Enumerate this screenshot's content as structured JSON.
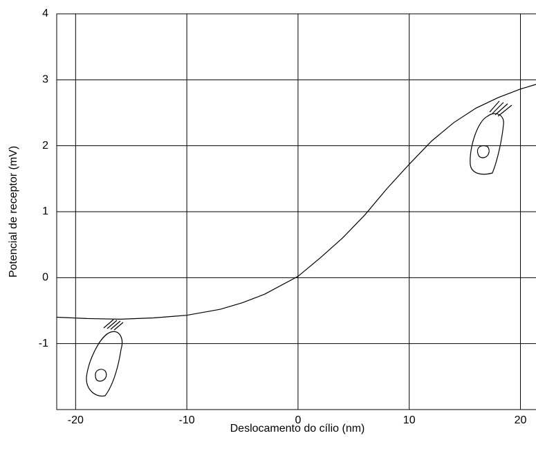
{
  "chart_data": {
    "type": "line",
    "x_label": "Deslocamento do cílio (nm)",
    "y_label": "Potencial de receptor (mV)",
    "x": [
      -21.7,
      -19,
      -16,
      -13,
      -10,
      -7,
      -5,
      -3,
      0,
      2,
      4,
      6,
      8,
      10,
      12,
      14,
      16,
      18,
      20,
      21.4
    ],
    "values": [
      -0.6,
      -0.62,
      -0.63,
      -0.61,
      -0.57,
      -0.48,
      -0.38,
      -0.25,
      0.02,
      0.3,
      0.6,
      0.95,
      1.35,
      1.72,
      2.07,
      2.35,
      2.57,
      2.73,
      2.86,
      2.93
    ],
    "color": "#000000",
    "xlim": [
      -21.7,
      21.4
    ],
    "xticks": [
      -20,
      -10,
      0,
      10,
      20
    ],
    "ylim": [
      -2,
      4
    ],
    "yticks": [
      -1,
      0,
      1,
      2,
      3,
      4
    ],
    "grid": true
  }
}
